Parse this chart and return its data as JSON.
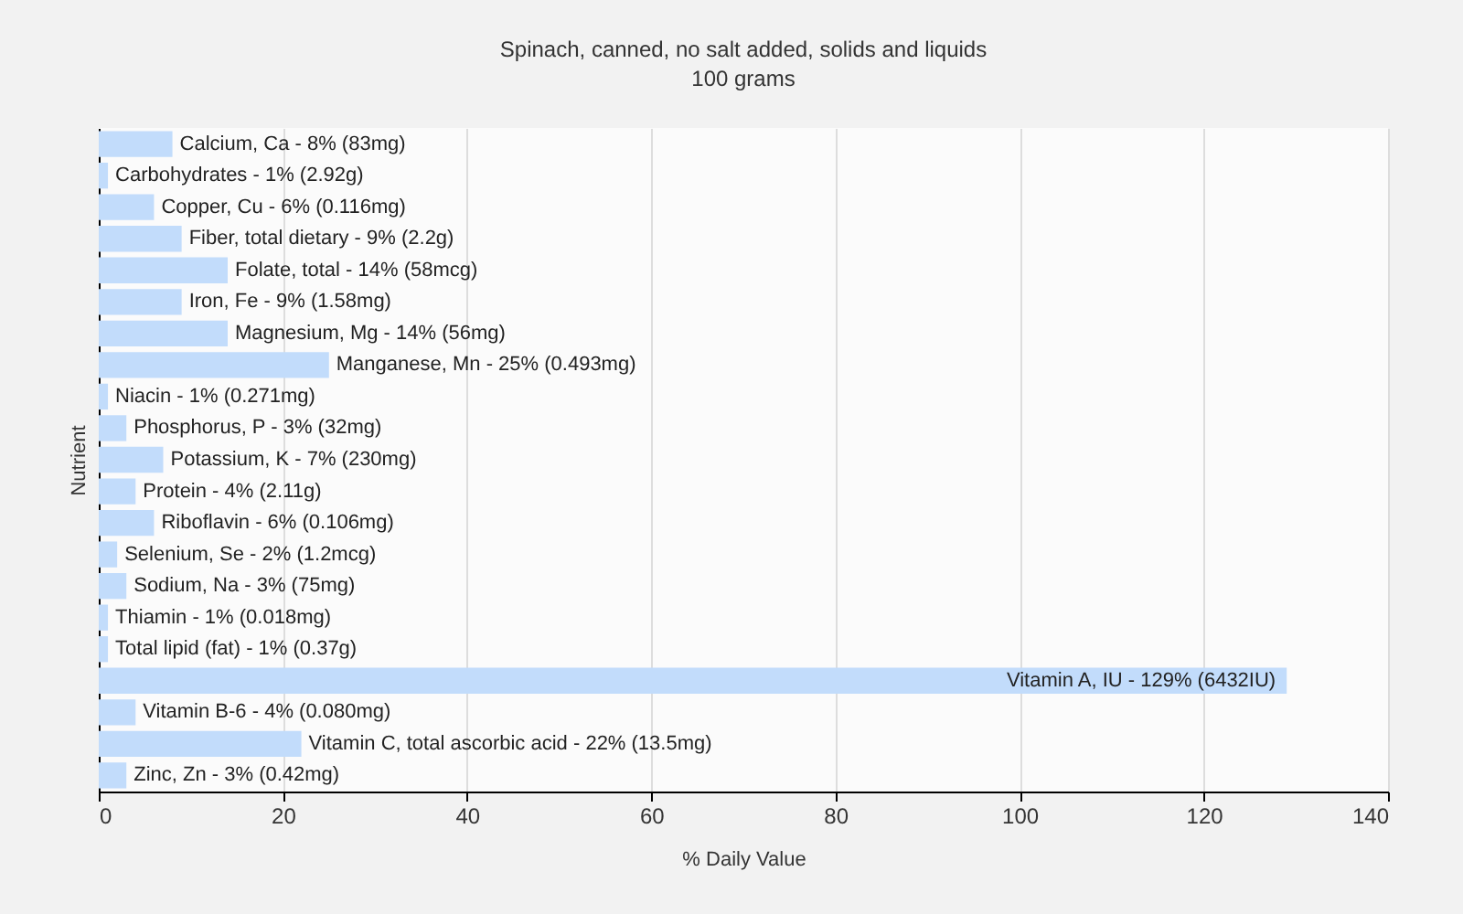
{
  "chart_data": {
    "type": "bar",
    "orientation": "horizontal",
    "title": "Spinach, canned, no salt added, solids and liquids",
    "subtitle": "100 grams",
    "xlabel": "% Daily Value",
    "ylabel": "Nutrient",
    "categories": [
      "Calcium, Ca - 8% (83mg)",
      "Carbohydrates - 1% (2.92g)",
      "Copper, Cu - 6% (0.116mg)",
      "Fiber, total dietary - 9% (2.2g)",
      "Folate, total - 14% (58mcg)",
      "Iron, Fe - 9% (1.58mg)",
      "Magnesium, Mg - 14% (56mg)",
      "Manganese, Mn - 25% (0.493mg)",
      "Niacin - 1% (0.271mg)",
      "Phosphorus, P - 3% (32mg)",
      "Potassium, K - 7% (230mg)",
      "Protein - 4% (2.11g)",
      "Riboflavin - 6% (0.106mg)",
      "Selenium, Se - 2% (1.2mcg)",
      "Sodium, Na - 3% (75mg)",
      "Thiamin - 1% (0.018mg)",
      "Total lipid (fat) - 1% (0.37g)",
      "Vitamin A, IU - 129% (6432IU)",
      "Vitamin B-6 - 4% (0.080mg)",
      "Vitamin C, total ascorbic acid - 22% (13.5mg)",
      "Zinc, Zn - 3% (0.42mg)"
    ],
    "values": [
      8,
      1,
      6,
      9,
      14,
      9,
      14,
      25,
      1,
      3,
      7,
      4,
      6,
      2,
      3,
      1,
      1,
      129,
      4,
      22,
      3
    ],
    "color": "#c2dcfb",
    "xlim": [
      0,
      140
    ],
    "xticks": [
      0,
      20,
      40,
      60,
      80,
      100,
      120,
      140
    ],
    "grid": "x",
    "tick_labels": "x"
  }
}
